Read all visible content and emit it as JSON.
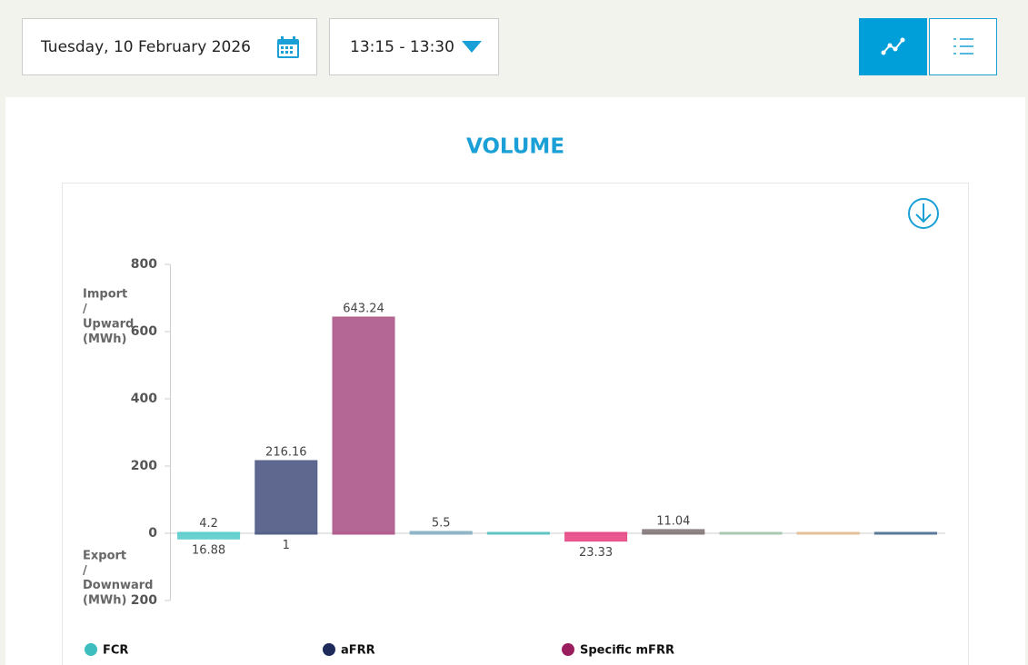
{
  "header": {
    "date": "Tuesday, 10 February 2026",
    "time_range": "13:15 - 13:30"
  },
  "chart_data": {
    "type": "bar",
    "title": "VOLUME",
    "y_label_upper": [
      "Import",
      "/",
      "Upward",
      "(MWh)"
    ],
    "y_label_lower": [
      "Export",
      "/",
      "Downward",
      "(MWh)"
    ],
    "categories": [
      null,
      null,
      null,
      null,
      null,
      null,
      null,
      null,
      null,
      null
    ],
    "up_values": [
      4.2,
      216.16,
      643.24,
      5.5,
      0,
      0,
      11.04,
      0,
      0,
      0
    ],
    "up_value_labels": [
      "4.2",
      "216.16",
      "643.24",
      "5.5",
      null,
      null,
      "11.04",
      null,
      null,
      null
    ],
    "down_values": [
      -16.88,
      -1,
      0,
      0,
      0,
      -23.33,
      0,
      0,
      0,
      0
    ],
    "down_value_labels": [
      "16.88",
      "1",
      null,
      null,
      null,
      "23.33",
      null,
      null,
      null,
      null
    ],
    "colors": [
      "#62cfcf",
      "#56618a",
      "#b05e8e",
      "#8fb6c6",
      "#5fc4c4",
      "#e8508a",
      "#8a7f80",
      "#a8c8b0",
      "#e6c29a",
      "#5a7a9a"
    ],
    "ylim": [
      -200,
      800
    ],
    "yticks": [
      {
        "value": -200,
        "label": "200"
      },
      0,
      200,
      400,
      600,
      800
    ],
    "legend": [
      {
        "label": "FCR",
        "color": "#3dbdbd"
      },
      {
        "label": "aFRR",
        "color": "#1e2a5a"
      },
      {
        "label": "Specific mFRR",
        "color": "#9a1e5e"
      }
    ]
  }
}
